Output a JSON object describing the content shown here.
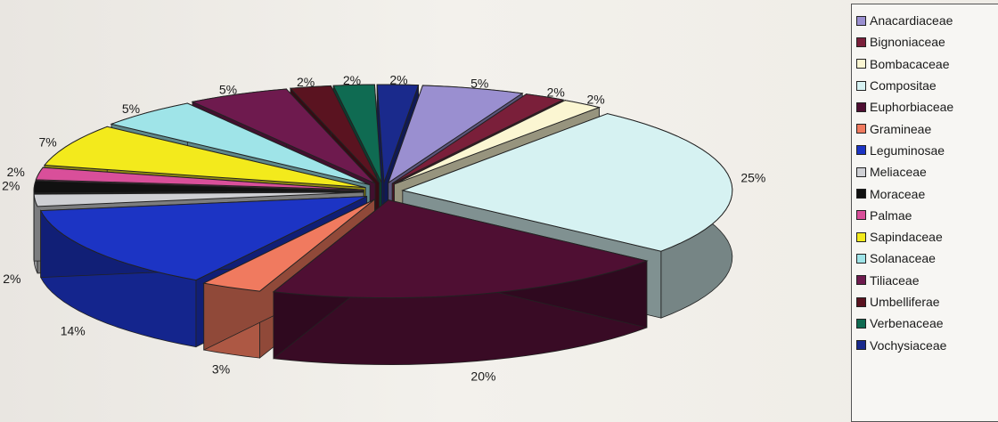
{
  "chart_data": {
    "type": "pie",
    "style": "3d-exploded",
    "legend_position": "right",
    "series": [
      {
        "name": "Anacardiaceae",
        "value": 5,
        "label": "5%",
        "color": "#9a8fd0"
      },
      {
        "name": "Bignoniaceae",
        "value": 2,
        "label": "2%",
        "color": "#7a1f3a"
      },
      {
        "name": "Bombacaceae",
        "value": 2,
        "label": "2%",
        "color": "#fbf6d2"
      },
      {
        "name": "Compositae",
        "value": 25,
        "label": "25%",
        "color": "#d6f2f2"
      },
      {
        "name": "Euphorbiaceae",
        "value": 20,
        "label": "20%",
        "color": "#4f0f33"
      },
      {
        "name": "Gramineae",
        "value": 3,
        "label": "3%",
        "color": "#f07a5f"
      },
      {
        "name": "Leguminosae",
        "value": 14,
        "label": "14%",
        "color": "#1c34c4"
      },
      {
        "name": "Meliaceae",
        "value": 2,
        "label": "2%",
        "color": "#cfd0d4"
      },
      {
        "name": "Moraceae",
        "value": 2,
        "label": "2%",
        "color": "#111111"
      },
      {
        "name": "Palmae",
        "value": 2,
        "label": "2%",
        "color": "#d94f9a"
      },
      {
        "name": "Sapindaceae",
        "value": 7,
        "label": "7%",
        "color": "#f3ea1c"
      },
      {
        "name": "Solanaceae",
        "value": 5,
        "label": "5%",
        "color": "#9fe4e8"
      },
      {
        "name": "Tiliaceae",
        "value": 5,
        "label": "5%",
        "color": "#6e1a4e"
      },
      {
        "name": "Umbelliferae",
        "value": 2,
        "label": "2%",
        "color": "#5a1320"
      },
      {
        "name": "Verbenaceae",
        "value": 2,
        "label": "2%",
        "color": "#0f6b52"
      },
      {
        "name": "Vochysiaceae",
        "value": 2,
        "label": "2%",
        "color": "#1a2a8c"
      }
    ]
  }
}
